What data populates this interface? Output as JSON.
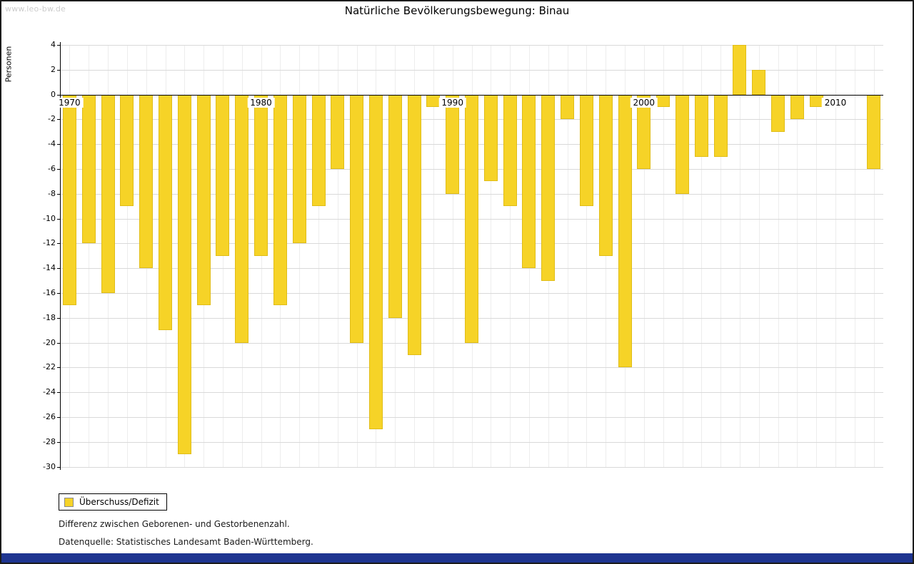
{
  "watermark": "www.leo-bw.de",
  "title": "Natürliche Bevölkerungsbewegung: Binau",
  "chart_data": {
    "type": "bar",
    "title": "Natürliche Bevölkerungsbewegung: Binau",
    "ylabel": "Personen",
    "ylim": [
      -30,
      4
    ],
    "ytick_step": 2,
    "x_axis_labels": [
      1970,
      1980,
      1990,
      2000,
      2010
    ],
    "years": [
      1970,
      1971,
      1972,
      1973,
      1974,
      1975,
      1976,
      1977,
      1978,
      1979,
      1980,
      1981,
      1982,
      1983,
      1984,
      1985,
      1986,
      1987,
      1988,
      1989,
      1990,
      1991,
      1992,
      1993,
      1994,
      1995,
      1996,
      1997,
      1998,
      1999,
      2000,
      2001,
      2002,
      2003,
      2004,
      2005,
      2006,
      2007,
      2008,
      2009,
      2010,
      2011,
      2012
    ],
    "values": [
      -17,
      -12,
      -16,
      -9,
      -14,
      -19,
      -29,
      -17,
      -13,
      -20,
      -13,
      -17,
      -12,
      -9,
      -6,
      -20,
      -27,
      -18,
      -21,
      -1,
      -8,
      -20,
      -7,
      -9,
      -14,
      -15,
      -2,
      -9,
      -13,
      -22,
      -6,
      -1,
      -8,
      -5,
      -5,
      4,
      2,
      -3,
      -2,
      -1,
      0,
      0,
      -6
    ],
    "legend": "Überschuss/Defizit",
    "bar_color": "#f6d327",
    "grid": true,
    "legend_position": "bottom-left"
  },
  "footnotes": {
    "line1": "Differenz zwischen Geborenen- und Gestorbenenzahl.",
    "line2": "Datenquelle: Statistisches Landesamt Baden-Württemberg."
  },
  "footer_color": "#1f3590"
}
